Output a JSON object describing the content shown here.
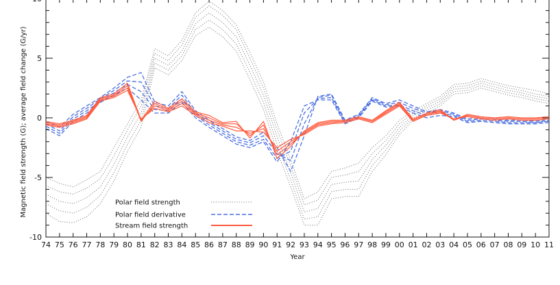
{
  "chart_data": {
    "type": "line",
    "xlabel": "Year",
    "ylabel": "Magnetic field strength (G); average field change (G/yr)",
    "x": [
      1974,
      1975,
      1976,
      1977,
      1978,
      1979,
      1980,
      1981,
      1982,
      1983,
      1984,
      1985,
      1986,
      1987,
      1988,
      1989,
      1990,
      1991,
      1992,
      1993,
      1994,
      1995,
      1996,
      1997,
      1998,
      1999,
      2000,
      2001,
      2002,
      2003,
      2004,
      2005,
      2006,
      2007,
      2008,
      2009,
      2010,
      2011
    ],
    "x_tick_labels": [
      "74",
      "75",
      "76",
      "77",
      "78",
      "79",
      "80",
      "81",
      "82",
      "83",
      "84",
      "85",
      "86",
      "87",
      "88",
      "89",
      "90",
      "91",
      "92",
      "93",
      "94",
      "95",
      "96",
      "97",
      "98",
      "99",
      "00",
      "01",
      "02",
      "03",
      "04",
      "05",
      "06",
      "07",
      "08",
      "09",
      "10",
      "11"
    ],
    "xlim": [
      1974,
      2011
    ],
    "ylim": [
      -10,
      10
    ],
    "y_ticks": [
      -10,
      -5,
      0,
      5,
      10
    ],
    "legend": {
      "placement": "lower-left",
      "entries": [
        {
          "label": "Polar field strength",
          "color": "#808080",
          "style": "dotted"
        },
        {
          "label": "Polar field derivative",
          "color": "#4a6fe0",
          "style": "dashed"
        },
        {
          "label": "Stream field strength",
          "color": "#ff5a3c",
          "style": "solid"
        }
      ]
    },
    "series": [
      {
        "group": "Polar field strength",
        "color": "#808080",
        "style": "dotted",
        "values": [
          -5.0,
          -5.5,
          -5.8,
          -5.2,
          -4.5,
          -2.5,
          -0.5,
          1.5,
          5.8,
          5.2,
          6.5,
          8.8,
          9.8,
          9.0,
          7.8,
          5.5,
          3.0,
          -0.5,
          -3.5,
          -6.8,
          -6.2,
          -4.5,
          -4.2,
          -3.8,
          -2.5,
          -1.5,
          -0.2,
          0.6,
          1.2,
          1.8,
          2.8,
          2.9,
          3.3,
          3.0,
          2.7,
          2.5,
          2.3,
          2.0
        ]
      },
      {
        "group": "Polar field strength",
        "color": "#808080",
        "style": "dotted",
        "values": [
          -5.7,
          -6.2,
          -6.4,
          -5.9,
          -5.1,
          -3.2,
          -1.0,
          1.0,
          5.4,
          4.8,
          6.1,
          8.4,
          9.4,
          8.6,
          7.4,
          5.0,
          2.5,
          -1.0,
          -4.0,
          -7.3,
          -6.9,
          -5.0,
          -4.8,
          -4.5,
          -3.0,
          -1.9,
          -0.5,
          0.4,
          1.0,
          1.6,
          2.6,
          2.7,
          3.1,
          2.8,
          2.5,
          2.3,
          2.0,
          1.8
        ]
      },
      {
        "group": "Polar field strength",
        "color": "#808080",
        "style": "dotted",
        "values": [
          -6.4,
          -7.0,
          -7.2,
          -6.7,
          -5.8,
          -3.9,
          -1.6,
          0.4,
          5.0,
          4.4,
          5.6,
          7.9,
          8.8,
          8.0,
          6.8,
          4.4,
          1.9,
          -1.6,
          -4.6,
          -7.9,
          -7.6,
          -5.6,
          -5.4,
          -5.3,
          -3.5,
          -2.3,
          -0.8,
          0.2,
          0.8,
          1.4,
          2.4,
          2.5,
          2.9,
          2.6,
          2.3,
          2.1,
          1.8,
          1.6
        ]
      },
      {
        "group": "Polar field strength",
        "color": "#808080",
        "style": "dotted",
        "values": [
          -7.2,
          -7.8,
          -8.0,
          -7.5,
          -6.5,
          -4.6,
          -2.2,
          -0.2,
          4.6,
          4.0,
          5.2,
          7.4,
          8.2,
          7.4,
          6.2,
          3.8,
          1.3,
          -2.2,
          -5.2,
          -8.5,
          -8.3,
          -6.2,
          -6.0,
          -6.0,
          -4.0,
          -2.7,
          -1.1,
          0.0,
          0.6,
          1.2,
          2.2,
          2.3,
          2.7,
          2.4,
          2.1,
          1.9,
          1.6,
          1.4
        ]
      },
      {
        "group": "Polar field strength",
        "color": "#808080",
        "style": "dotted",
        "values": [
          -8.0,
          -8.7,
          -8.8,
          -8.3,
          -7.2,
          -5.3,
          -2.8,
          -0.8,
          4.2,
          3.6,
          4.8,
          6.9,
          7.6,
          6.8,
          5.6,
          3.2,
          0.7,
          -2.8,
          -5.8,
          -9.0,
          -9.0,
          -6.8,
          -6.6,
          -6.6,
          -4.5,
          -3.1,
          -1.4,
          -0.2,
          0.4,
          1.0,
          2.0,
          2.1,
          2.5,
          2.2,
          1.9,
          1.7,
          1.4,
          1.2
        ]
      },
      {
        "group": "Polar field derivative",
        "color": "#4a6fe0",
        "style": "dashed",
        "values": [
          -0.3,
          -0.8,
          0.3,
          1.0,
          1.7,
          2.5,
          3.4,
          3.8,
          1.3,
          1.0,
          2.2,
          0.6,
          -0.2,
          -0.9,
          -1.6,
          -1.9,
          -1.2,
          -2.5,
          -4.5,
          -1.5,
          1.8,
          2.0,
          -0.2,
          0.3,
          1.7,
          1.2,
          1.5,
          1.0,
          0.5,
          0.7,
          0.4,
          -0.1,
          0.0,
          -0.1,
          -0.2,
          -0.2,
          -0.3,
          -0.1
        ]
      },
      {
        "group": "Polar field derivative",
        "color": "#4a6fe0",
        "style": "dashed",
        "values": [
          -0.5,
          -1.1,
          0.1,
          0.8,
          1.6,
          2.3,
          3.1,
          3.0,
          1.0,
          0.8,
          1.9,
          0.4,
          -0.4,
          -1.1,
          -1.8,
          -2.1,
          -1.5,
          -3.0,
          -3.6,
          -0.5,
          1.7,
          1.9,
          -0.3,
          0.2,
          1.6,
          1.1,
          1.3,
          0.8,
          0.4,
          0.6,
          0.3,
          -0.2,
          -0.1,
          -0.2,
          -0.3,
          -0.3,
          -0.4,
          -0.2
        ]
      },
      {
        "group": "Polar field derivative",
        "color": "#4a6fe0",
        "style": "dashed",
        "values": [
          -0.7,
          -1.3,
          -0.1,
          0.6,
          1.4,
          2.1,
          2.8,
          2.2,
          0.7,
          0.6,
          1.6,
          0.2,
          -0.6,
          -1.3,
          -2.0,
          -2.3,
          -1.8,
          -3.4,
          -2.8,
          0.4,
          1.6,
          1.7,
          -0.4,
          0.1,
          1.5,
          1.0,
          1.1,
          0.6,
          0.2,
          0.4,
          0.2,
          -0.3,
          -0.2,
          -0.3,
          -0.4,
          -0.4,
          -0.4,
          -0.3
        ]
      },
      {
        "group": "Polar field derivative",
        "color": "#4a6fe0",
        "style": "dashed",
        "values": [
          -0.9,
          -1.5,
          -0.3,
          0.4,
          1.3,
          1.9,
          2.5,
          1.5,
          0.4,
          0.4,
          1.3,
          0.0,
          -0.8,
          -1.5,
          -2.2,
          -2.5,
          -2.0,
          -3.7,
          -2.0,
          1.0,
          1.5,
          1.5,
          -0.5,
          0.0,
          1.4,
          0.9,
          1.0,
          0.4,
          0.0,
          0.2,
          0.1,
          -0.4,
          -0.3,
          -0.4,
          -0.5,
          -0.5,
          -0.5,
          -0.4
        ]
      },
      {
        "group": "Stream field strength",
        "color": "#ff5a3c",
        "style": "solid",
        "values": [
          -0.3,
          -0.5,
          -0.2,
          0.2,
          1.7,
          2.0,
          2.9,
          -0.2,
          1.4,
          0.8,
          1.6,
          0.5,
          0.2,
          -0.4,
          -0.3,
          -1.7,
          -0.3,
          -3.4,
          -2.4,
          -1.1,
          -0.4,
          -0.2,
          -0.2,
          0.1,
          -0.2,
          0.6,
          1.3,
          -0.1,
          0.4,
          0.7,
          -0.2,
          0.3,
          0.1,
          0.0,
          0.1,
          0.0,
          0.0,
          0.1
        ]
      },
      {
        "group": "Stream field strength",
        "color": "#ff5a3c",
        "style": "solid",
        "values": [
          -0.4,
          -0.6,
          -0.3,
          0.1,
          1.6,
          1.9,
          2.7,
          -0.3,
          1.2,
          0.7,
          1.4,
          0.4,
          0.0,
          -0.5,
          -0.5,
          -1.5,
          -0.6,
          -3.1,
          -2.2,
          -1.2,
          -0.5,
          -0.3,
          -0.3,
          0.0,
          -0.3,
          0.5,
          1.2,
          -0.2,
          0.3,
          0.6,
          -0.2,
          0.2,
          0.0,
          -0.1,
          0.0,
          -0.1,
          -0.1,
          0.0
        ]
      },
      {
        "group": "Stream field strength",
        "color": "#ff5a3c",
        "style": "solid",
        "values": [
          -0.5,
          -0.7,
          -0.4,
          0.0,
          1.5,
          1.8,
          2.5,
          -0.2,
          1.0,
          0.6,
          1.2,
          0.3,
          -0.2,
          -0.6,
          -0.8,
          -1.3,
          -0.9,
          -2.8,
          -2.0,
          -1.3,
          -0.6,
          -0.4,
          -0.3,
          0.0,
          -0.3,
          0.4,
          1.1,
          -0.2,
          0.3,
          0.5,
          -0.1,
          0.2,
          0.0,
          -0.1,
          0.0,
          -0.1,
          -0.1,
          0.0
        ]
      },
      {
        "group": "Stream field strength",
        "color": "#ff5a3c",
        "style": "solid",
        "values": [
          -0.6,
          -0.8,
          -0.5,
          -0.1,
          1.4,
          1.7,
          2.3,
          -0.1,
          0.8,
          0.5,
          1.0,
          0.2,
          -0.4,
          -0.7,
          -1.1,
          -1.1,
          -1.2,
          -2.5,
          -1.8,
          -1.4,
          -0.7,
          -0.5,
          -0.4,
          -0.1,
          -0.4,
          0.3,
          1.0,
          -0.3,
          0.2,
          0.4,
          -0.1,
          0.1,
          -0.1,
          -0.2,
          -0.1,
          -0.2,
          -0.2,
          -0.1
        ]
      }
    ]
  }
}
